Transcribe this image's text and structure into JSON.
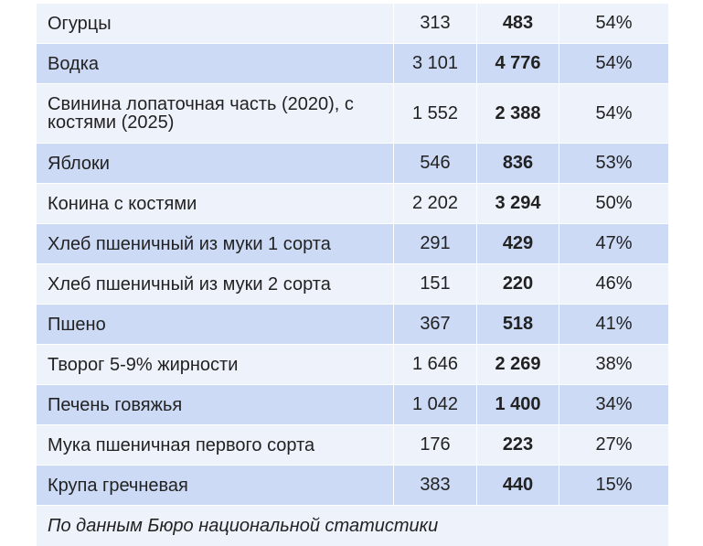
{
  "table": {
    "rows": [
      {
        "name": "Огурцы",
        "v2020": "313",
        "v2025": "483",
        "change": "54%",
        "shade": "light"
      },
      {
        "name": "Водка",
        "v2020": "3 101",
        "v2025": "4 776",
        "change": "54%",
        "shade": "dark"
      },
      {
        "name": "Свинина лопаточная часть (2020), с костями (2025)",
        "v2020": "1 552",
        "v2025": "2 388",
        "change": "54%",
        "shade": "light"
      },
      {
        "name": "Яблоки",
        "v2020": "546",
        "v2025": "836",
        "change": "53%",
        "shade": "dark"
      },
      {
        "name": "Конина с костями",
        "v2020": "2 202",
        "v2025": "3 294",
        "change": "50%",
        "shade": "light"
      },
      {
        "name": "Хлеб пшеничный из муки 1 сорта",
        "v2020": "291",
        "v2025": "429",
        "change": "47%",
        "shade": "dark"
      },
      {
        "name": "Хлеб пшеничный из муки 2 сорта",
        "v2020": "151",
        "v2025": "220",
        "change": "46%",
        "shade": "light"
      },
      {
        "name": "Пшено",
        "v2020": "367",
        "v2025": "518",
        "change": "41%",
        "shade": "dark"
      },
      {
        "name": "Творог 5-9% жирности",
        "v2020": "1 646",
        "v2025": "2 269",
        "change": "38%",
        "shade": "light"
      },
      {
        "name": "Печень говяжья",
        "v2020": "1 042",
        "v2025": "1 400",
        "change": "34%",
        "shade": "dark"
      },
      {
        "name": "Мука пшеничная первого сорта",
        "v2020": "176",
        "v2025": "223",
        "change": "27%",
        "shade": "light"
      },
      {
        "name": "Крупа гречневая",
        "v2020": "383",
        "v2025": "440",
        "change": "15%",
        "shade": "dark"
      }
    ],
    "source_note": "По данным Бюро национальной статистики"
  },
  "colors": {
    "row_light": "#eef2fb",
    "row_dark": "#ccdaf5",
    "text": "#222222"
  }
}
